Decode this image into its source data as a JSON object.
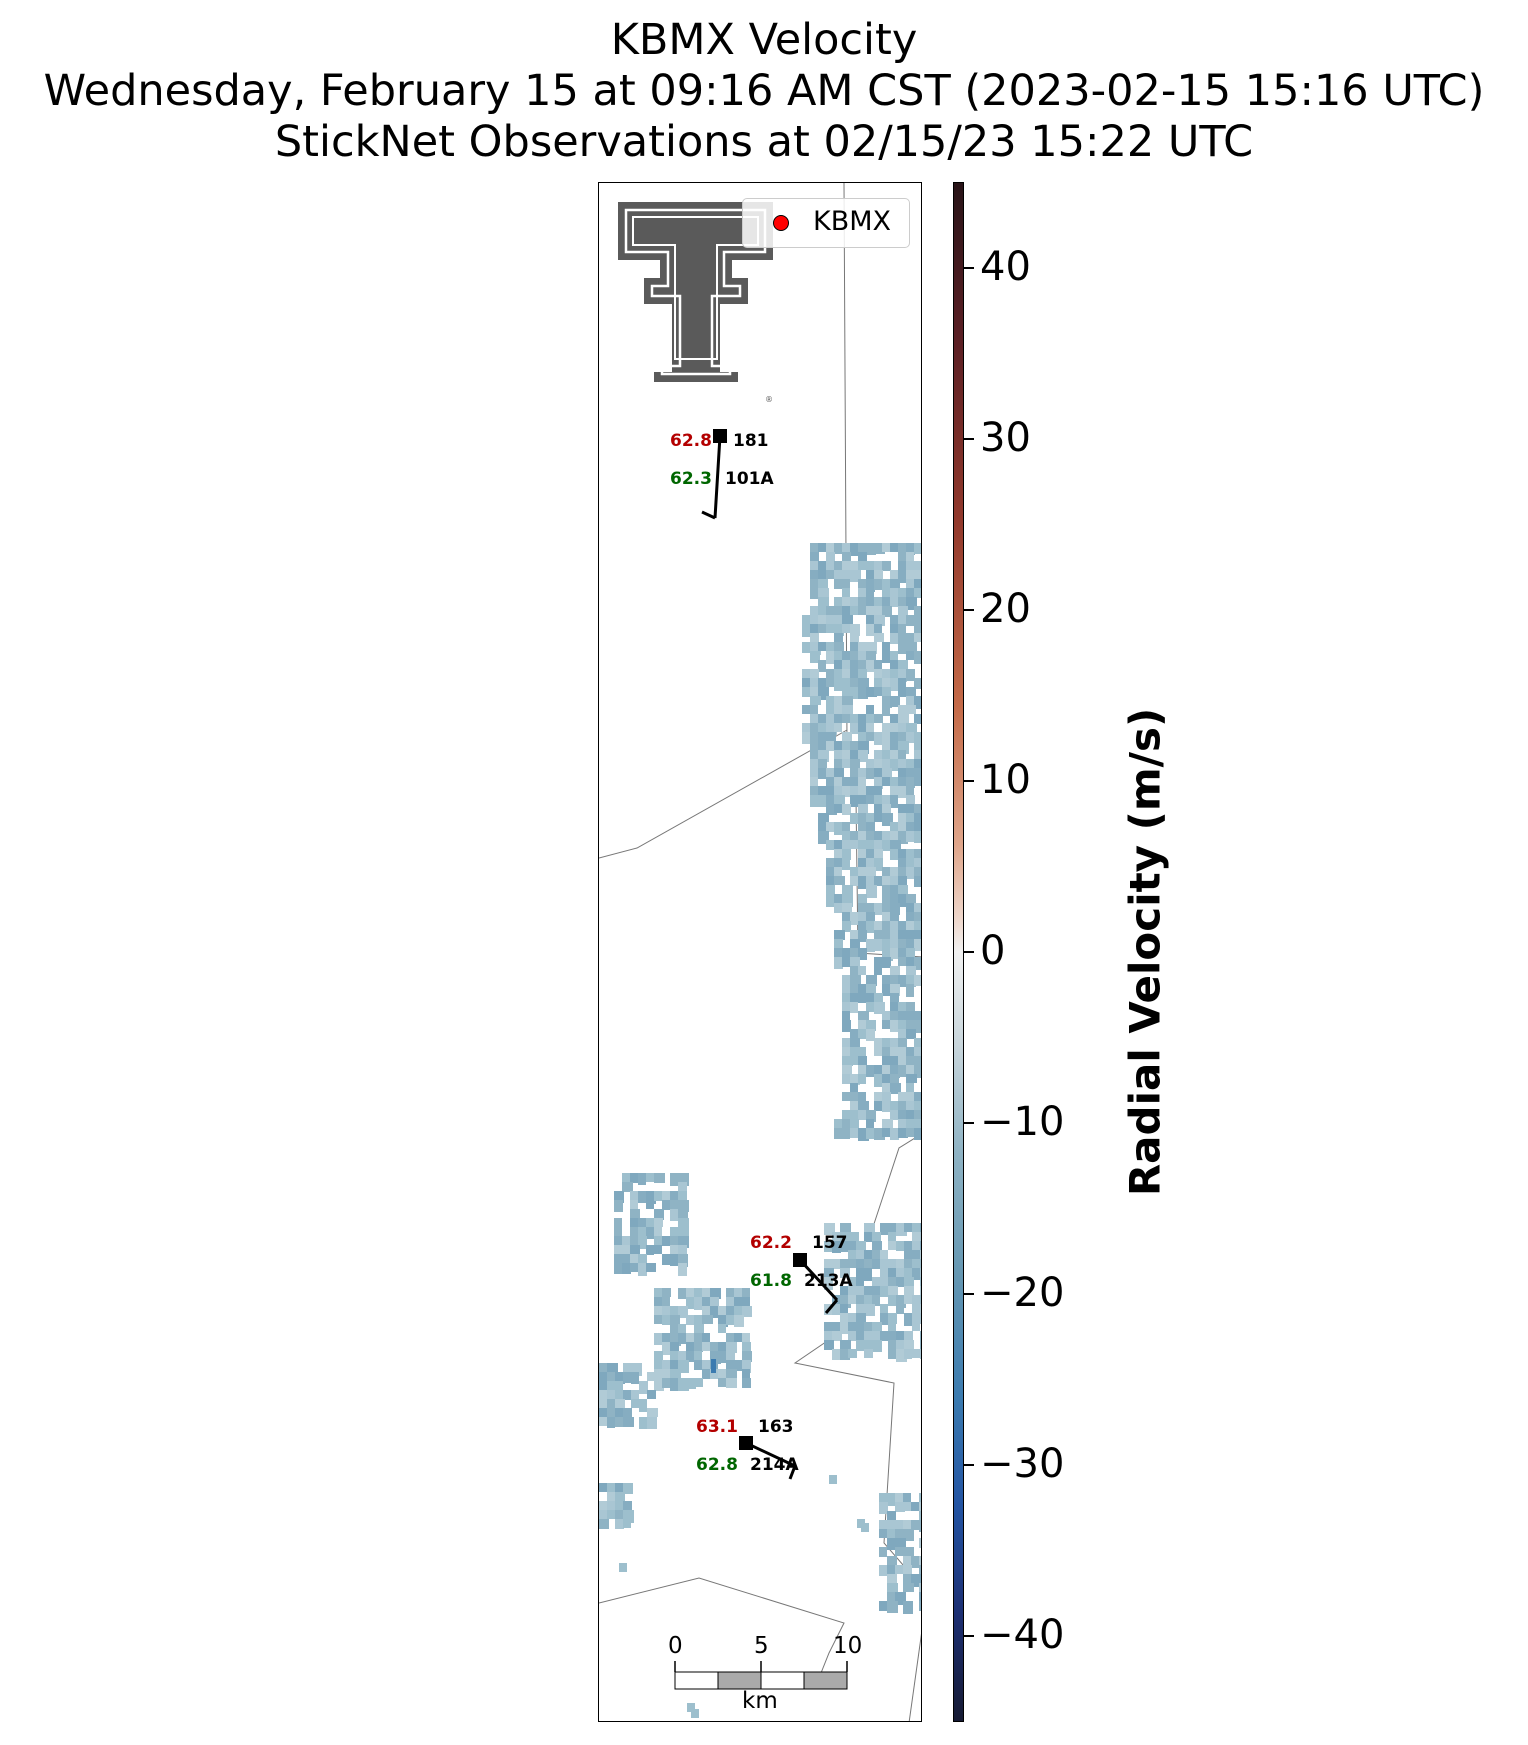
{
  "title": {
    "line1": "KBMX Velocity",
    "line2": "Wednesday, February 15 at 09:16 AM CST (2023-02-15 15:16 UTC)",
    "line3": "StickNet Observations at 02/15/23 15:22 UTC"
  },
  "legend": {
    "label": "KBMX",
    "marker_color": "#ff0000"
  },
  "colorbar": {
    "label": "Radial Velocity (m/s)",
    "range": [
      -45,
      45
    ],
    "ticks": [
      "40",
      "30",
      "20",
      "10",
      "0",
      "−10",
      "−20",
      "−30",
      "−40"
    ],
    "tick_values": [
      40,
      30,
      20,
      10,
      0,
      -10,
      -20,
      -30,
      -40
    ],
    "colors": [
      "#281418",
      "#92392c",
      "#dfa58a",
      "#f1f1f1",
      "#8fb3c4",
      "#3b7bb0",
      "#1c2f73",
      "#161a33"
    ]
  },
  "stations": [
    {
      "id": "101A",
      "temperature": "62.8",
      "dewpoint": "62.3",
      "wind_direction": "181"
    },
    {
      "id": "213A",
      "temperature": "62.2",
      "dewpoint": "61.8",
      "wind_direction": "157"
    },
    {
      "id": "214A",
      "temperature": "63.1",
      "dewpoint": "62.8",
      "wind_direction": "163"
    }
  ],
  "scale_bar": {
    "labels": [
      "0",
      "5",
      "10"
    ],
    "unit": "km"
  },
  "logo": {
    "name": "Texas Tech Double T",
    "color": "#5a5a5a"
  },
  "velocity_echo_color": "#8fb3c4"
}
